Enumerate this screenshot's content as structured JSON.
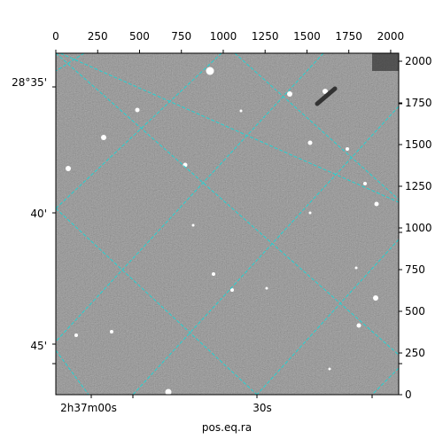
{
  "chart_data": {
    "type": "image",
    "xlabel": "pos.eq.ra",
    "xlim": [
      0,
      2048
    ],
    "xticks": [
      0,
      250,
      500,
      750,
      1000,
      1250,
      1500,
      1750,
      2000
    ],
    "ylim": [
      0,
      2048
    ],
    "yticks": [
      0,
      250,
      500,
      750,
      1000,
      1250,
      1500,
      1750,
      2000
    ],
    "dec_ticks": [
      "28°35'",
      "40'",
      "45'"
    ],
    "ra_ticks": [
      "2h37m00s",
      "30s"
    ],
    "grid": true,
    "grid_color": "#22d3d3"
  }
}
